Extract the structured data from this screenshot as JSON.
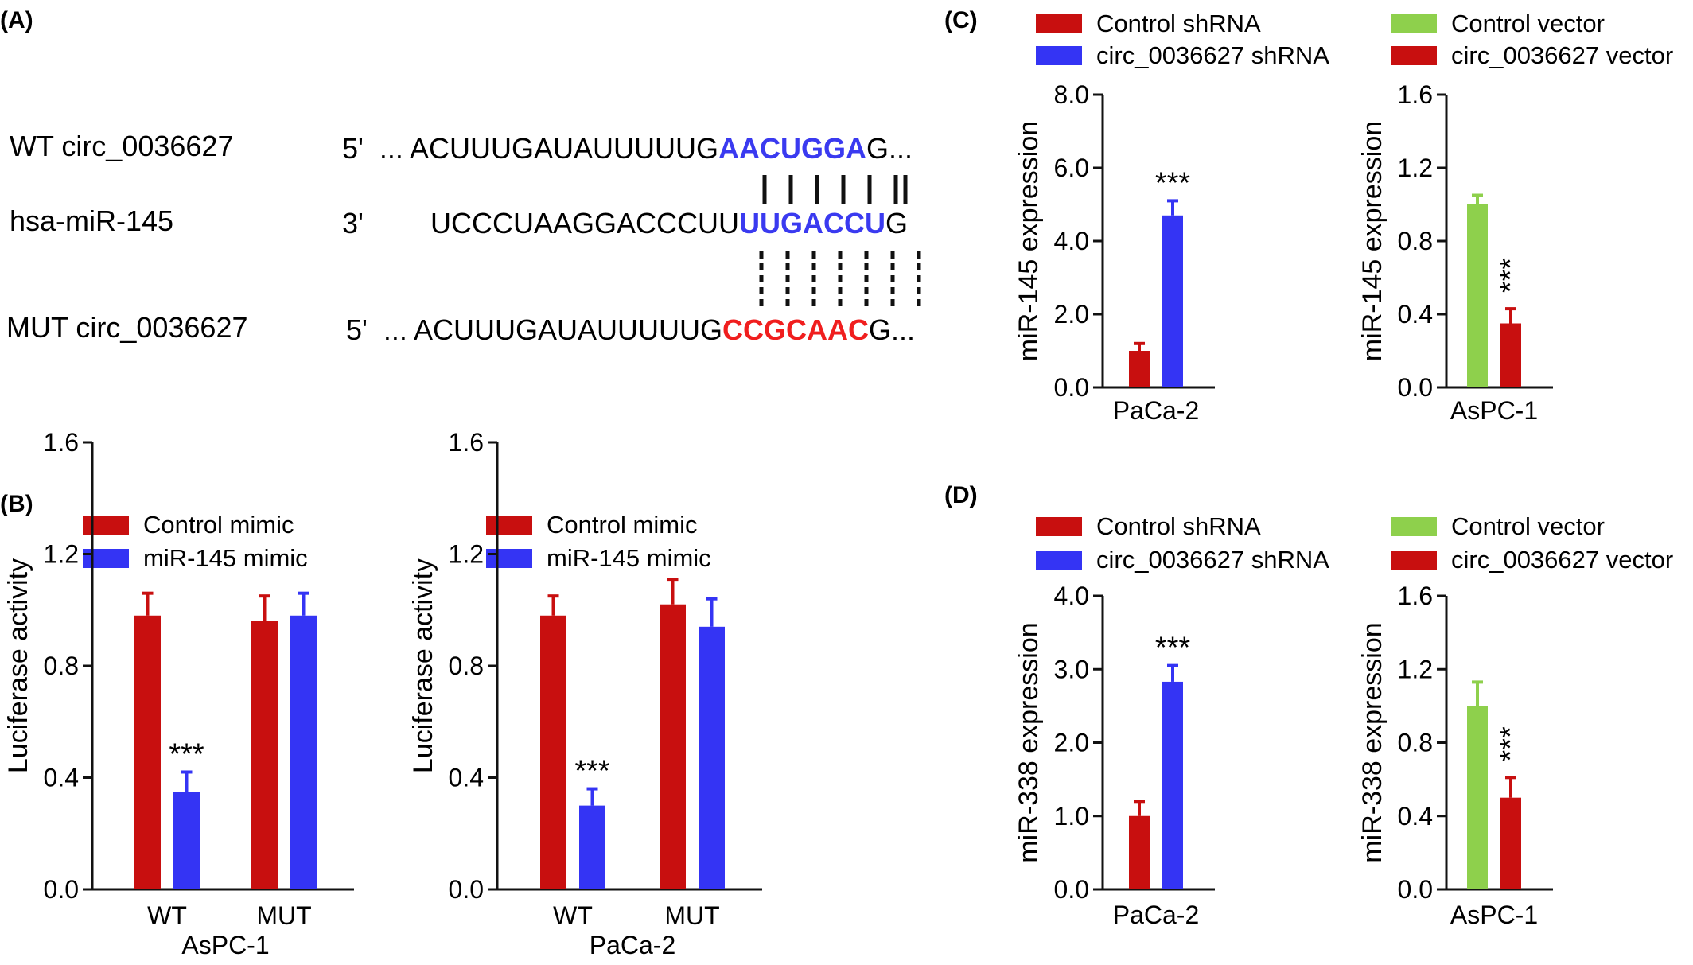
{
  "panels": {
    "a": {
      "label": "(A)",
      "rows": [
        {
          "name": "WT circ_0036627",
          "prime": "5'",
          "pre": "... ACUUUGAUAUUUUUG",
          "site": "AACUGGA",
          "post": "G...",
          "site_color": "#3a3af0"
        },
        {
          "name": "hsa-miR-145",
          "prime": "3'",
          "pre": "UCCCUAAGGACCCUU",
          "site": "UUGACCU",
          "post": "G",
          "site_color": "#3a3af0"
        },
        {
          "name": "MUT circ_0036627",
          "prime": "5'",
          "pre": "... ACUUUGAUAUUUUUG",
          "site": "CCGCAAC",
          "post": "G...",
          "site_color": "#f01e1e"
        }
      ]
    },
    "b": {
      "label": "(B)"
    },
    "c": {
      "label": "(C)"
    },
    "d": {
      "label": "(D)"
    }
  },
  "colors": {
    "red": "#c80f0f",
    "blue": "#3434f4",
    "green": "#8ed04c"
  },
  "chart_data": [
    {
      "id": "b1",
      "type": "bar",
      "ylabel": "Luciferase activity",
      "xlabel": "AsPC-1",
      "ylim": [
        0,
        1.6
      ],
      "yticks": [
        "0.0",
        "0.4",
        "0.8",
        "1.2",
        "1.6"
      ],
      "categories": [
        "WT",
        "MUT"
      ],
      "series": [
        {
          "name": "Control mimic",
          "color": "#c80f0f",
          "values": [
            0.98,
            0.96
          ],
          "errors": [
            0.08,
            0.09
          ]
        },
        {
          "name": "miR-145 mimic",
          "color": "#3434f4",
          "values": [
            0.35,
            0.98
          ],
          "errors": [
            0.07,
            0.08
          ]
        }
      ],
      "annotations": [
        {
          "category": 0,
          "series": 1,
          "text": "***"
        }
      ]
    },
    {
      "id": "b2",
      "type": "bar",
      "ylabel": "Luciferase activity",
      "xlabel": "PaCa-2",
      "ylim": [
        0,
        1.6
      ],
      "yticks": [
        "0.0",
        "0.4",
        "0.8",
        "1.2",
        "1.6"
      ],
      "categories": [
        "WT",
        "MUT"
      ],
      "series": [
        {
          "name": "Control mimic",
          "color": "#c80f0f",
          "values": [
            0.98,
            1.02
          ],
          "errors": [
            0.07,
            0.09
          ]
        },
        {
          "name": "miR-145 mimic",
          "color": "#3434f4",
          "values": [
            0.3,
            0.94
          ],
          "errors": [
            0.06,
            0.1
          ]
        }
      ],
      "annotations": [
        {
          "category": 0,
          "series": 1,
          "text": "***"
        }
      ]
    },
    {
      "id": "c1",
      "type": "bar",
      "ylabel": "miR-145 expression",
      "xlabel": "",
      "ylim": [
        0,
        8.0
      ],
      "yticks": [
        "0.0",
        "2.0",
        "4.0",
        "6.0",
        "8.0"
      ],
      "categories": [
        "PaCa-2"
      ],
      "series": [
        {
          "name": "Control shRNA",
          "color": "#c80f0f",
          "values": [
            1.0
          ],
          "errors": [
            0.2
          ]
        },
        {
          "name": "circ_0036627 shRNA",
          "color": "#3434f4",
          "values": [
            4.7
          ],
          "errors": [
            0.4
          ]
        }
      ],
      "annotations": [
        {
          "category": 0,
          "series": 1,
          "text": "***"
        }
      ]
    },
    {
      "id": "c2",
      "type": "bar",
      "ylabel": "miR-145 expression",
      "xlabel": "",
      "ylim": [
        0,
        1.6
      ],
      "yticks": [
        "0.0",
        "0.4",
        "0.8",
        "1.2",
        "1.6"
      ],
      "categories": [
        "AsPC-1"
      ],
      "series": [
        {
          "name": "Control vector",
          "color": "#8ed04c",
          "values": [
            1.0
          ],
          "errors": [
            0.05
          ]
        },
        {
          "name": "circ_0036627 vector",
          "color": "#c80f0f",
          "values": [
            0.35
          ],
          "errors": [
            0.08
          ]
        }
      ],
      "annotations": [
        {
          "category": 0,
          "series": 1,
          "text": "***",
          "rotated": true
        }
      ]
    },
    {
      "id": "d1",
      "type": "bar",
      "ylabel": "miR-338 expression",
      "xlabel": "",
      "ylim": [
        0,
        4.0
      ],
      "yticks": [
        "0.0",
        "1.0",
        "2.0",
        "3.0",
        "4.0"
      ],
      "categories": [
        "PaCa-2"
      ],
      "series": [
        {
          "name": "Control shRNA",
          "color": "#c80f0f",
          "values": [
            1.0
          ],
          "errors": [
            0.2
          ]
        },
        {
          "name": "circ_0036627 shRNA",
          "color": "#3434f4",
          "values": [
            2.83
          ],
          "errors": [
            0.22
          ]
        }
      ],
      "annotations": [
        {
          "category": 0,
          "series": 1,
          "text": "***"
        }
      ]
    },
    {
      "id": "d2",
      "type": "bar",
      "ylabel": "miR-338 expression",
      "xlabel": "",
      "ylim": [
        0,
        1.6
      ],
      "yticks": [
        "0.0",
        "0.4",
        "0.8",
        "1.2",
        "1.6"
      ],
      "categories": [
        "AsPC-1"
      ],
      "series": [
        {
          "name": "Control vector",
          "color": "#8ed04c",
          "values": [
            1.0
          ],
          "errors": [
            0.13
          ]
        },
        {
          "name": "circ_0036627 vector",
          "color": "#c80f0f",
          "values": [
            0.5
          ],
          "errors": [
            0.11
          ]
        }
      ],
      "annotations": [
        {
          "category": 0,
          "series": 1,
          "text": "***",
          "rotated": true
        }
      ]
    }
  ]
}
